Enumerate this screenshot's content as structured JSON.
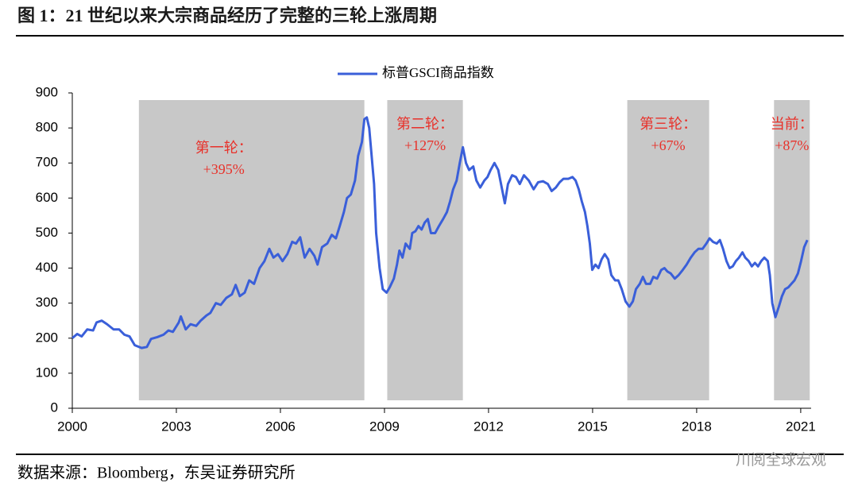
{
  "header": {
    "title": "图 1：21 世纪以来大宗商品经历了完整的三轮上涨周期"
  },
  "chart_data": {
    "type": "line",
    "x": [
      2000.0,
      2000.14,
      2000.27,
      2000.43,
      2000.6,
      2000.7,
      2000.85,
      2001.0,
      2001.19,
      2001.35,
      2001.5,
      2001.65,
      2001.8,
      2002.0,
      2002.15,
      2002.27,
      2002.45,
      2002.63,
      2002.77,
      2002.9,
      2003.07,
      2003.13,
      2003.27,
      2003.41,
      2003.57,
      2003.7,
      2003.87,
      2003.98,
      2004.14,
      2004.28,
      2004.44,
      2004.6,
      2004.71,
      2004.83,
      2004.97,
      2005.1,
      2005.24,
      2005.4,
      2005.54,
      2005.68,
      2005.8,
      2005.93,
      2006.06,
      2006.2,
      2006.34,
      2006.45,
      2006.57,
      2006.7,
      2006.84,
      2006.98,
      2007.07,
      2007.2,
      2007.35,
      2007.48,
      2007.6,
      2007.71,
      2007.83,
      2007.92,
      2008.03,
      2008.15,
      2008.24,
      2008.35,
      2008.42,
      2008.49,
      2008.56,
      2008.63,
      2008.7,
      2008.76,
      2008.86,
      2008.95,
      2009.06,
      2009.15,
      2009.27,
      2009.36,
      2009.43,
      2009.52,
      2009.61,
      2009.73,
      2009.8,
      2009.89,
      2009.98,
      2010.07,
      2010.16,
      2010.25,
      2010.34,
      2010.46,
      2010.57,
      2010.69,
      2010.8,
      2010.89,
      2010.98,
      2011.08,
      2011.17,
      2011.26,
      2011.35,
      2011.44,
      2011.56,
      2011.65,
      2011.76,
      2011.88,
      2011.97,
      2012.06,
      2012.17,
      2012.28,
      2012.38,
      2012.47,
      2012.56,
      2012.68,
      2012.79,
      2012.9,
      2013.02,
      2013.16,
      2013.3,
      2013.43,
      2013.57,
      2013.71,
      2013.82,
      2013.94,
      2014.05,
      2014.16,
      2014.3,
      2014.42,
      2014.51,
      2014.6,
      2014.69,
      2014.78,
      2014.85,
      2014.92,
      2014.99,
      2015.08,
      2015.17,
      2015.26,
      2015.35,
      2015.45,
      2015.54,
      2015.65,
      2015.74,
      2015.84,
      2015.95,
      2016.06,
      2016.16,
      2016.25,
      2016.36,
      2016.45,
      2016.54,
      2016.66,
      2016.75,
      2016.86,
      2016.98,
      2017.07,
      2017.16,
      2017.25,
      2017.37,
      2017.48,
      2017.6,
      2017.71,
      2017.83,
      2017.94,
      2018.05,
      2018.17,
      2018.28,
      2018.37,
      2018.47,
      2018.58,
      2018.67,
      2018.76,
      2018.86,
      2018.95,
      2019.04,
      2019.13,
      2019.22,
      2019.32,
      2019.4,
      2019.5,
      2019.59,
      2019.68,
      2019.77,
      2019.86,
      2019.95,
      2020.05,
      2020.11,
      2020.18,
      2020.27,
      2020.37,
      2020.46,
      2020.55,
      2020.64,
      2020.73,
      2020.82,
      2020.92,
      2021.01,
      2021.1,
      2021.19
    ],
    "series": [
      {
        "name": "标普GSCI商品指数",
        "color": "#3a5fd9",
        "values": [
          200,
          212,
          205,
          225,
          222,
          245,
          250,
          240,
          225,
          225,
          210,
          205,
          180,
          172,
          175,
          198,
          203,
          210,
          222,
          218,
          245,
          262,
          225,
          240,
          235,
          250,
          265,
          272,
          300,
          295,
          315,
          325,
          352,
          320,
          330,
          365,
          355,
          400,
          420,
          455,
          430,
          440,
          420,
          440,
          475,
          470,
          488,
          430,
          455,
          435,
          410,
          460,
          470,
          495,
          485,
          520,
          560,
          600,
          610,
          650,
          720,
          760,
          825,
          830,
          800,
          720,
          640,
          500,
          400,
          340,
          330,
          345,
          370,
          410,
          450,
          430,
          470,
          455,
          500,
          505,
          520,
          510,
          530,
          540,
          500,
          500,
          520,
          540,
          560,
          590,
          625,
          650,
          700,
          745,
          700,
          680,
          690,
          650,
          630,
          650,
          660,
          680,
          700,
          680,
          630,
          585,
          640,
          665,
          660,
          640,
          665,
          650,
          625,
          645,
          648,
          640,
          620,
          630,
          645,
          655,
          655,
          660,
          650,
          625,
          590,
          560,
          520,
          470,
          395,
          410,
          400,
          425,
          440,
          425,
          380,
          365,
          365,
          340,
          305,
          290,
          305,
          340,
          355,
          375,
          355,
          355,
          375,
          370,
          395,
          400,
          390,
          385,
          370,
          380,
          395,
          410,
          430,
          445,
          455,
          455,
          470,
          485,
          475,
          470,
          480,
          455,
          420,
          400,
          405,
          420,
          430,
          445,
          430,
          420,
          405,
          415,
          405,
          420,
          430,
          420,
          380,
          300,
          260,
          290,
          320,
          340,
          345,
          355,
          365,
          385,
          420,
          460,
          480
        ]
      }
    ],
    "xlim": [
      2000,
      2021.3
    ],
    "xticks": [
      2000,
      2003,
      2006,
      2009,
      2012,
      2015,
      2018,
      2021
    ],
    "ylim": [
      0,
      900
    ],
    "yticks": [
      0,
      100,
      200,
      300,
      400,
      500,
      600,
      700,
      800,
      900
    ],
    "shade_color": "#c8c8c8",
    "annotation_color": "#e8312a",
    "periods": [
      {
        "x": [
          2001.92,
          2008.42
        ],
        "label": "第一轮：",
        "change": "+395%"
      },
      {
        "x": [
          2009.08,
          2011.26
        ],
        "label": "第二轮：",
        "change": "+127%"
      },
      {
        "x": [
          2016.0,
          2018.36
        ],
        "label": "第三轮：",
        "change": "+67%"
      },
      {
        "x": [
          2020.23,
          2021.26
        ],
        "label": "当前：",
        "change": "+87%"
      }
    ]
  },
  "footer": {
    "source": "数据来源：Bloomberg，东吴证券研究所",
    "watermark": "川阅全球宏观"
  }
}
